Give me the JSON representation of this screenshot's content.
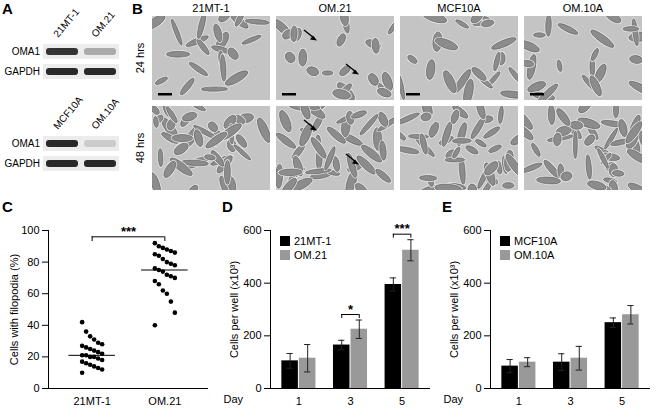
{
  "figure": {
    "A": {
      "title": "A",
      "blots": [
        {
          "lanes": [
            "21MT-1",
            "OM.21"
          ],
          "rows": [
            {
              "label": "OMA1",
              "intensity": [
                0.85,
                0.3
              ]
            },
            {
              "label": "GAPDH",
              "intensity": [
                0.9,
                0.9
              ]
            }
          ]
        },
        {
          "lanes": [
            "MCF10A",
            "OM.10A"
          ],
          "rows": [
            {
              "label": "OMA1",
              "intensity": [
                0.9,
                0.15
              ]
            },
            {
              "label": "GAPDH",
              "intensity": [
                0.9,
                0.9
              ]
            }
          ]
        }
      ]
    },
    "B": {
      "title": "B",
      "columns": [
        "21MT-1",
        "OM.21",
        "MCF10A",
        "OM.10A"
      ],
      "rows": [
        "24 hrs",
        "48 hrs"
      ],
      "arrows": [
        [
          0,
          2,
          0,
          0
        ],
        [
          0,
          2,
          0,
          0
        ]
      ]
    }
  },
  "chart_data": [
    {
      "type": "scatter",
      "title": "C",
      "y_label": "Cells with filopodia (%)",
      "categories": [
        "21MT-1",
        "OM.21"
      ],
      "values": [
        [
          42,
          36,
          33,
          31,
          29,
          28,
          27,
          26,
          25,
          24,
          23,
          22,
          21,
          21,
          20,
          20,
          19,
          18,
          17,
          16,
          15,
          14,
          13,
          12,
          10
        ],
        [
          92,
          90,
          89,
          88,
          87,
          86,
          85,
          84,
          82,
          80,
          79,
          78,
          76,
          75,
          74,
          72,
          71,
          70,
          68,
          66,
          62,
          60,
          55,
          48,
          40
        ]
      ],
      "medians": [
        21,
        75
      ],
      "color": "#000000",
      "ylim": [
        0,
        100
      ],
      "yticks": [
        0,
        20,
        40,
        60,
        80,
        100
      ],
      "annotations": [
        {
          "text": "***",
          "categories": [
            "21MT-1",
            "OM.21"
          ]
        }
      ]
    },
    {
      "type": "bar",
      "title": "D",
      "x_label": "Day",
      "y_label": "Cells per well (x10³)",
      "categories": [
        "1",
        "3",
        "5"
      ],
      "series": [
        {
          "name": "21MT-1",
          "color": "#000000",
          "values": [
            105,
            165,
            395
          ],
          "errors": [
            28,
            18,
            25
          ]
        },
        {
          "name": "OM.21",
          "color": "#999999",
          "values": [
            115,
            225,
            525
          ],
          "errors": [
            52,
            35,
            40
          ]
        }
      ],
      "ylim": [
        0,
        600
      ],
      "yticks": [
        0,
        200,
        400,
        600
      ],
      "legend": "top-left",
      "annotations": [
        {
          "text": "*",
          "category": "3"
        },
        {
          "text": "***",
          "category": "5"
        }
      ]
    },
    {
      "type": "bar",
      "title": "E",
      "x_label": "Day",
      "y_label": "Cells per well (x10³)",
      "categories": [
        "1",
        "3",
        "5"
      ],
      "series": [
        {
          "name": "MCF10A",
          "color": "#000000",
          "values": [
            85,
            100,
            250
          ],
          "errors": [
            25,
            32,
            18
          ]
        },
        {
          "name": "OM.10A",
          "color": "#999999",
          "values": [
            100,
            115,
            280
          ],
          "errors": [
            17,
            45,
            35
          ]
        }
      ],
      "ylim": [
        0,
        600
      ],
      "yticks": [
        0,
        200,
        400,
        600
      ],
      "legend": "top-left"
    }
  ]
}
